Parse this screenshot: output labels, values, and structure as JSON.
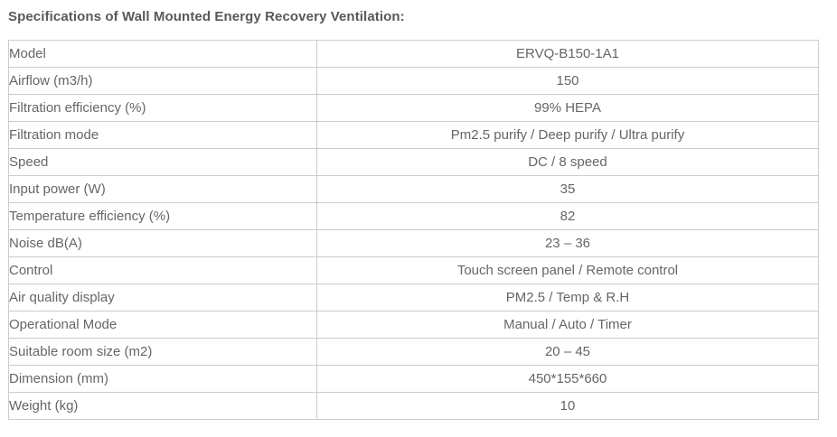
{
  "page": {
    "title": "Specifications of Wall Mounted Energy Recovery Ventilation:"
  },
  "table": {
    "rows": [
      {
        "label": "Model",
        "value": "ERVQ-B150-1A1"
      },
      {
        "label": "Airflow (m3/h)",
        "value": "150"
      },
      {
        "label": "Filtration efficiency (%)",
        "value": "99% HEPA"
      },
      {
        "label": "Filtration mode",
        "value": "Pm2.5 purify / Deep purify / Ultra purify"
      },
      {
        "label": "Speed",
        "value": "DC / 8 speed"
      },
      {
        "label": "Input power (W)",
        "value": "35"
      },
      {
        "label": "Temperature efficiency (%)",
        "value": "82"
      },
      {
        "label": "Noise dB(A)",
        "value": "23 – 36"
      },
      {
        "label": "Control",
        "value": "Touch screen panel / Remote control"
      },
      {
        "label": "Air quality display",
        "value": "PM2.5 / Temp & R.H"
      },
      {
        "label": "Operational Mode",
        "value": "Manual / Auto / Timer"
      },
      {
        "label": "Suitable room size (m2)",
        "value": "20 – 45"
      },
      {
        "label": "Dimension (mm)",
        "value": "450*155*660"
      },
      {
        "label": "Weight (kg)",
        "value": "10"
      }
    ]
  },
  "colors": {
    "title_text": "#58595b",
    "cell_text": "#666666",
    "border_horizontal": "#cccccc",
    "border_vertical": "#a6a6a6",
    "background": "#ffffff"
  }
}
